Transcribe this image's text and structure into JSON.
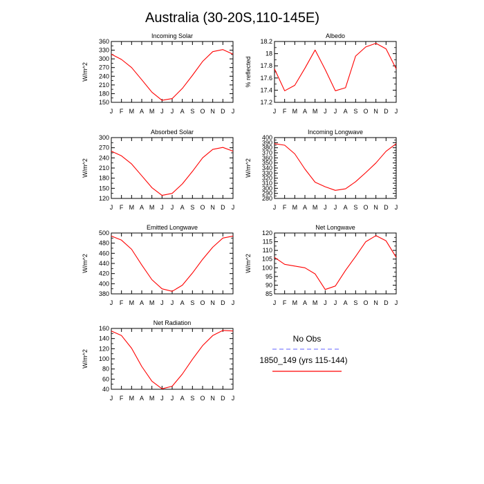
{
  "page": {
    "title": "Australia (30-20S,110-145E)"
  },
  "legend": {
    "obs_label": "No Obs",
    "model_label": "1850_149 (yrs 115-144)",
    "obs_color": "#8080ff",
    "model_color": "#ff0000"
  },
  "months": [
    "J",
    "F",
    "M",
    "A",
    "M",
    "J",
    "J",
    "A",
    "S",
    "O",
    "N",
    "D",
    "J"
  ],
  "chart_data": [
    {
      "type": "line",
      "title": "Incoming Solar",
      "ylabel": "W/m^2",
      "ylim": [
        150,
        360
      ],
      "yticks": [
        150,
        180,
        210,
        240,
        270,
        300,
        330,
        360
      ],
      "series": [
        {
          "values": [
            316,
            298,
            270,
            228,
            185,
            157,
            163,
            198,
            243,
            291,
            325,
            332,
            316
          ]
        }
      ]
    },
    {
      "type": "line",
      "title": "Albedo",
      "ylabel": "% reflected",
      "ylim": [
        17.2,
        18.2
      ],
      "yticks": [
        17.2,
        17.4,
        17.6,
        17.8,
        18.0,
        18.2
      ],
      "series": [
        {
          "values": [
            17.75,
            17.39,
            17.48,
            17.76,
            18.06,
            17.74,
            17.39,
            17.44,
            17.96,
            18.11,
            18.17,
            18.08,
            17.75
          ]
        }
      ]
    },
    {
      "type": "line",
      "title": "Absorbed Solar",
      "ylabel": "W/m^2",
      "ylim": [
        120,
        300
      ],
      "yticks": [
        120,
        150,
        180,
        210,
        240,
        270,
        300
      ],
      "series": [
        {
          "values": [
            260,
            246,
            222,
            187,
            152,
            129,
            135,
            163,
            200,
            240,
            265,
            271,
            260
          ]
        }
      ]
    },
    {
      "type": "line",
      "title": "Incoming Longwave",
      "ylabel": "W/m^2",
      "ylim": [
        280,
        400
      ],
      "yticks": [
        280,
        290,
        300,
        310,
        320,
        330,
        340,
        350,
        360,
        370,
        380,
        390,
        400
      ],
      "series": [
        {
          "values": [
            388,
            385,
            368,
            338,
            312,
            303,
            296,
            299,
            313,
            331,
            350,
            373,
            388
          ]
        }
      ]
    },
    {
      "type": "line",
      "title": "Emitted Longwave",
      "ylabel": "W/m^2",
      "ylim": [
        380,
        500
      ],
      "yticks": [
        380,
        400,
        420,
        440,
        460,
        480,
        500
      ],
      "series": [
        {
          "values": [
            494,
            486,
            468,
            437,
            408,
            390,
            385,
            397,
            421,
            448,
            472,
            490,
            494
          ]
        }
      ]
    },
    {
      "type": "line",
      "title": "Net Longwave",
      "ylabel": "W/m^2",
      "ylim": [
        85,
        120
      ],
      "yticks": [
        85,
        90,
        95,
        100,
        105,
        110,
        115,
        120
      ],
      "series": [
        {
          "values": [
            106,
            102,
            101,
            100,
            96.5,
            87.5,
            89.5,
            98.5,
            106.5,
            115,
            118.5,
            115.5,
            106
          ]
        }
      ]
    },
    {
      "type": "line",
      "title": "Net Radiation",
      "ylabel": "W/m^2",
      "ylim": [
        40,
        160
      ],
      "yticks": [
        40,
        60,
        80,
        100,
        120,
        140,
        160
      ],
      "series": [
        {
          "values": [
            155,
            146,
            121,
            85,
            56,
            41,
            46,
            70,
            99,
            126,
            146,
            156,
            155
          ]
        }
      ]
    }
  ]
}
